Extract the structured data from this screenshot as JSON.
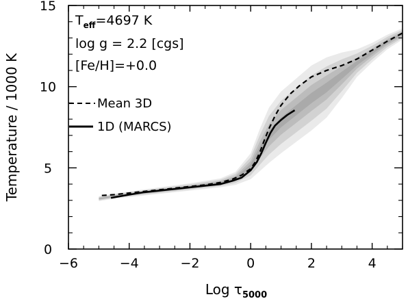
{
  "chart_data": {
    "type": "line",
    "xlabel": "Log τ",
    "xlabel_sub": "5000",
    "ylabel": "Temperature / 1000 K",
    "xlim": [
      -6,
      5
    ],
    "ylim": [
      0,
      15
    ],
    "x_ticks": [
      -6,
      -4,
      -2,
      0,
      2,
      4
    ],
    "y_ticks": [
      0,
      5,
      10,
      15
    ],
    "annotations": {
      "teff_prefix": "T",
      "teff_sub": "eff",
      "teff_suffix": "=4697 K",
      "logg": "log g = 2.2 [cgs]",
      "feh": "[Fe/H]=+0.0"
    },
    "legend": {
      "placement": "left",
      "entries": [
        {
          "label": "Mean 3D",
          "style": "dashed"
        },
        {
          "label": "1D (MARCS)",
          "style": "solid"
        }
      ]
    },
    "series": [
      {
        "name": "Mean 3D",
        "style": "dashed",
        "x": [
          -4.9,
          -4.5,
          -4.0,
          -3.5,
          -3.0,
          -2.5,
          -2.0,
          -1.5,
          -1.0,
          -0.6,
          -0.3,
          0.0,
          0.15,
          0.3,
          0.45,
          0.6,
          0.8,
          1.0,
          1.3,
          1.6,
          2.0,
          2.5,
          3.0,
          3.5,
          4.0,
          4.5,
          5.0
        ],
        "values": [
          3.3,
          3.35,
          3.45,
          3.55,
          3.65,
          3.75,
          3.85,
          3.95,
          4.1,
          4.3,
          4.55,
          4.95,
          5.35,
          5.95,
          6.7,
          7.4,
          8.2,
          8.85,
          9.55,
          10.05,
          10.6,
          11.0,
          11.3,
          11.7,
          12.25,
          12.8,
          13.3
        ]
      },
      {
        "name": "1D (MARCS)",
        "style": "solid",
        "x": [
          -4.6,
          -4.0,
          -3.5,
          -3.0,
          -2.5,
          -2.0,
          -1.5,
          -1.0,
          -0.6,
          -0.3,
          0.0,
          0.2,
          0.35,
          0.5,
          0.65,
          0.8,
          1.0,
          1.2,
          1.45
        ],
        "values": [
          3.15,
          3.35,
          3.5,
          3.6,
          3.7,
          3.8,
          3.9,
          4.0,
          4.2,
          4.4,
          4.85,
          5.35,
          5.9,
          6.55,
          7.15,
          7.6,
          7.95,
          8.25,
          8.55
        ]
      }
    ],
    "density_band": {
      "x": [
        -5.0,
        -4.5,
        -4.0,
        -3.0,
        -2.0,
        -1.0,
        -0.5,
        0.0,
        0.3,
        0.6,
        1.0,
        1.5,
        2.0,
        2.5,
        3.0,
        3.5,
        4.0,
        4.5,
        5.0
      ],
      "lo": [
        2.95,
        3.1,
        3.2,
        3.4,
        3.6,
        3.8,
        3.95,
        4.3,
        4.8,
        5.3,
        5.9,
        6.6,
        7.3,
        8.1,
        9.3,
        10.6,
        11.5,
        12.3,
        12.9
      ],
      "hi": [
        3.25,
        3.4,
        3.55,
        3.8,
        4.05,
        4.35,
        4.75,
        5.9,
        7.4,
        8.7,
        9.7,
        10.5,
        11.3,
        11.8,
        12.1,
        12.3,
        12.7,
        13.2,
        13.6
      ]
    }
  }
}
